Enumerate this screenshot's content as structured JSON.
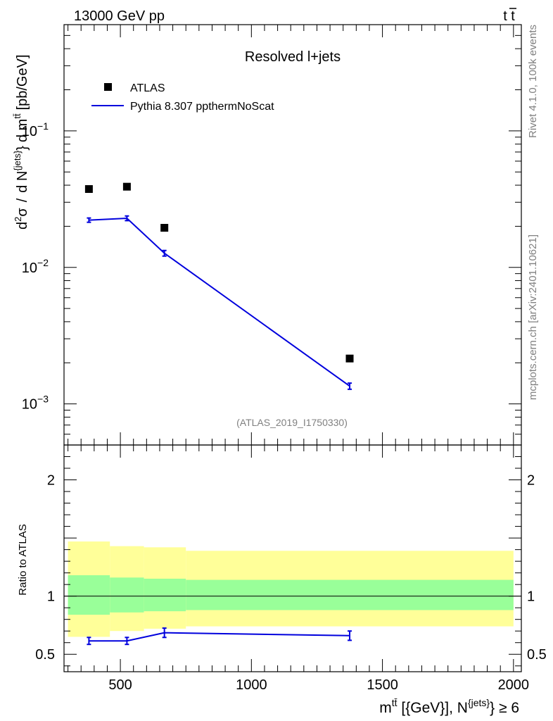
{
  "header": {
    "left": "13000 GeV pp",
    "right_base": "t",
    "right_bar": "t"
  },
  "side": {
    "top": "Rivet 4.1.0,  100k events",
    "bottom": "mcplots.cern.ch [arXiv:2401.10621]"
  },
  "colors": {
    "mc": "#0000dd",
    "band_outer": "#ffff99",
    "band_inner": "#99ff99",
    "data": "#000000",
    "watermark": "#808080"
  },
  "chart_data": [
    {
      "type": "scatter",
      "title": "Resolved l+jets",
      "watermark": "(ATLAS_2019_I1750330)",
      "yscale": "log",
      "ylim": [
        0.0005,
        0.6
      ],
      "xlim": [
        285,
        2030
      ],
      "ylabel": {
        "d2": "d",
        "d2_sup": "2",
        "sigma": "σ",
        "slash": "/",
        "dN": "d N",
        "dN_sup": "{jets}",
        "close": "}",
        "dm": "d m",
        "dm_sup": "tt̄",
        "unit": "[pb/GeV]"
      },
      "yticks": [
        {
          "value": 0.1,
          "base": "10",
          "exp": "−1"
        },
        {
          "value": 0.01,
          "base": "10",
          "exp": "−2"
        },
        {
          "value": 0.001,
          "base": "10",
          "exp": "−3"
        }
      ],
      "legend": [
        {
          "label": "ATLAS",
          "marker": "square"
        },
        {
          "label": "Pythia 8.307 ppthermNoScat",
          "marker": "line"
        }
      ],
      "series": [
        {
          "name": "ATLAS",
          "x": [
            380,
            525,
            668,
            1375
          ],
          "y": [
            0.0375,
            0.039,
            0.0195,
            0.00215
          ]
        },
        {
          "name": "Pythia 8.307 ppthermNoScat",
          "x": [
            380,
            525,
            668,
            1375
          ],
          "y": [
            0.0222,
            0.0229,
            0.0127,
            0.00135
          ],
          "err": [
            0.0008,
            0.0009,
            0.0006,
            7e-05
          ]
        }
      ]
    },
    {
      "type": "line",
      "ylabel": "Ratio to ATLAS",
      "xlabel": {
        "m": "m",
        "m_sup": "tt̄",
        "unit": " [{GeV}], N",
        "n_sup": "{jets}",
        "cond": "} ≥ 6"
      },
      "xlim": [
        285,
        2030
      ],
      "ylim": [
        0.35,
        2.3
      ],
      "xticks": [
        500,
        1000,
        1500,
        2000
      ],
      "xtick_labels": [
        "500",
        "1000",
        "1500",
        "2000"
      ],
      "yticks": [
        0.5,
        1,
        2
      ],
      "ytick_labels": [
        "0.5",
        "1",
        "2"
      ],
      "bands": [
        {
          "x0": 300,
          "x1": 460,
          "outer": [
            0.65,
            1.47
          ],
          "inner": [
            0.84,
            1.18
          ]
        },
        {
          "x0": 460,
          "x1": 590,
          "outer": [
            0.7,
            1.43
          ],
          "inner": [
            0.86,
            1.16
          ]
        },
        {
          "x0": 590,
          "x1": 750,
          "outer": [
            0.72,
            1.42
          ],
          "inner": [
            0.87,
            1.15
          ]
        },
        {
          "x0": 750,
          "x1": 2000,
          "outer": [
            0.74,
            1.39
          ],
          "inner": [
            0.88,
            1.14
          ]
        }
      ],
      "series": [
        {
          "name": "Pythia 8.307 ppthermNoScat",
          "x": [
            380,
            525,
            668,
            1375
          ],
          "y": [
            0.615,
            0.615,
            0.685,
            0.66
          ],
          "err": [
            0.03,
            0.03,
            0.04,
            0.04
          ]
        }
      ]
    }
  ]
}
